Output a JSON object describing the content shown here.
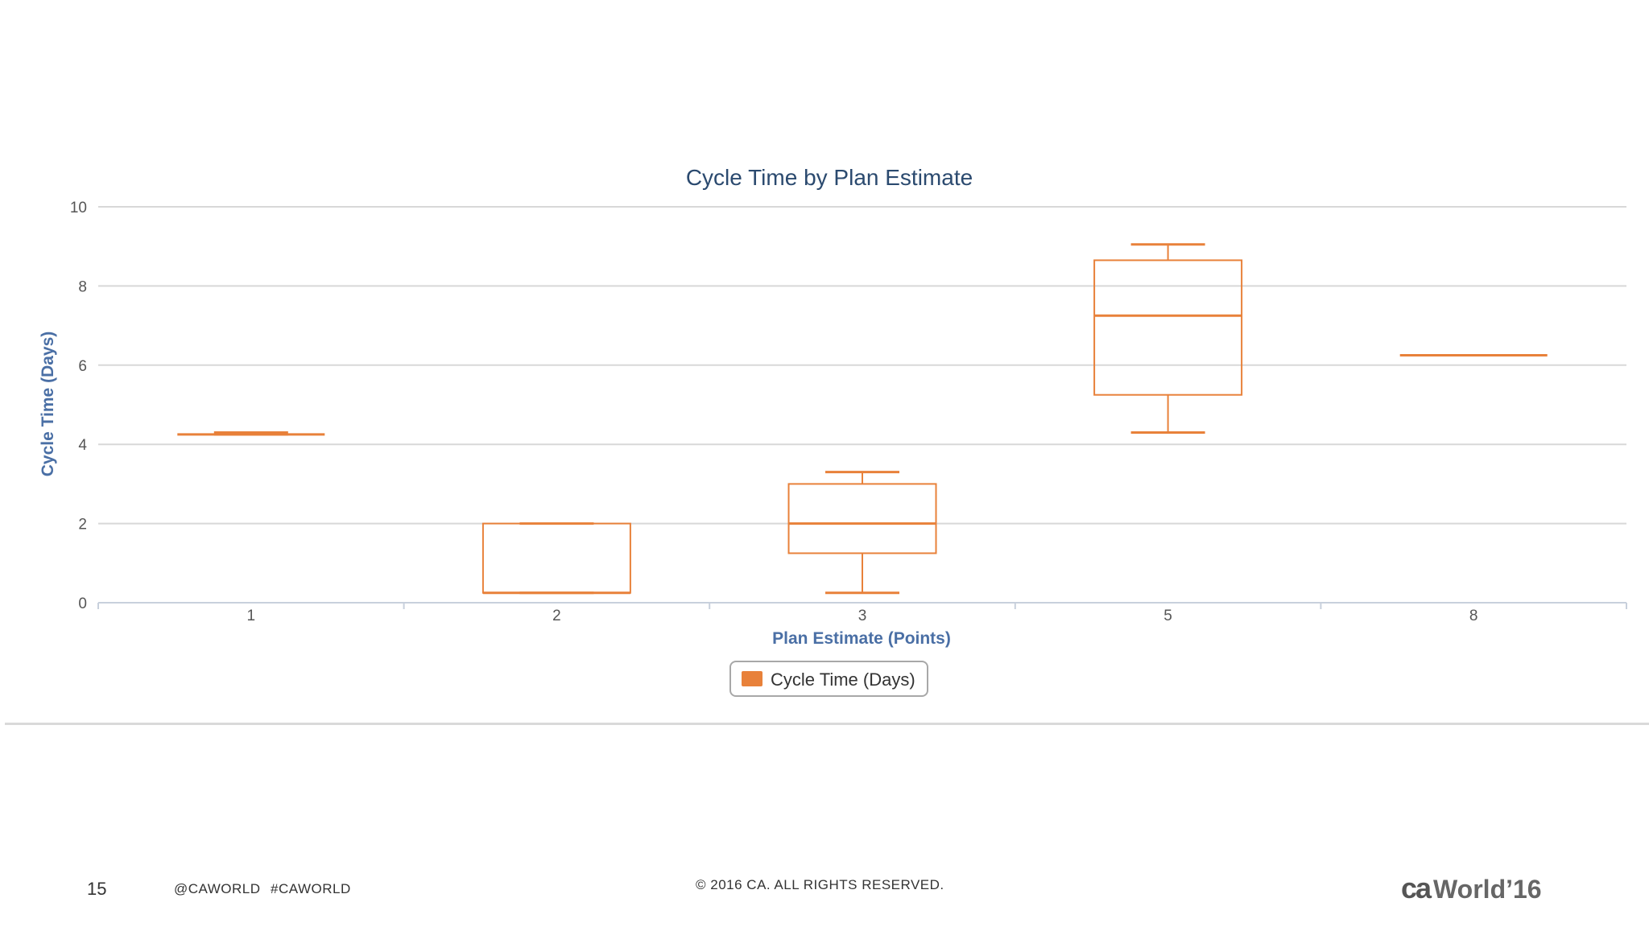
{
  "chart_data": {
    "type": "boxplot",
    "title": "Cycle Time by Plan Estimate",
    "xlabel": "Plan Estimate (Points)",
    "ylabel": "Cycle Time (Days)",
    "categories": [
      "1",
      "2",
      "3",
      "5",
      "8"
    ],
    "ylim": [
      0,
      10
    ],
    "yticks": [
      0,
      2,
      4,
      6,
      8,
      10
    ],
    "grid": true,
    "legend_position": "bottom-center",
    "series": [
      {
        "name": "Cycle Time (Days)",
        "color": "#E8813A",
        "boxes": [
          {
            "category": "1",
            "min": 4.25,
            "q1": 4.25,
            "median": 4.25,
            "q3": 4.25,
            "max": 4.3
          },
          {
            "category": "2",
            "min": 0.25,
            "q1": 0.25,
            "median": 0.25,
            "q3": 2.0,
            "max": 2.0
          },
          {
            "category": "3",
            "min": 0.25,
            "q1": 1.25,
            "median": 2.0,
            "q3": 3.0,
            "max": 3.3
          },
          {
            "category": "5",
            "min": 4.3,
            "q1": 5.25,
            "median": 7.25,
            "q3": 8.65,
            "max": 9.05
          },
          {
            "category": "8",
            "min": 6.25,
            "q1": 6.25,
            "median": 6.25,
            "q3": 6.25,
            "max": 6.25
          }
        ]
      }
    ]
  },
  "footer": {
    "page_number": "15",
    "handle": "@CAWORLD",
    "hashtag": "#CAWORLD",
    "copyright": "© 2016 CA. ALL RIGHTS RESERVED.",
    "logo_ca": "ca",
    "logo_world": "World",
    "logo_year": "’16"
  },
  "colors": {
    "title": "#2B4A6F",
    "axis_label": "#4A6FA5",
    "grid": "#d8d8d8",
    "tick_label": "#555555",
    "box": "#E8813A"
  }
}
